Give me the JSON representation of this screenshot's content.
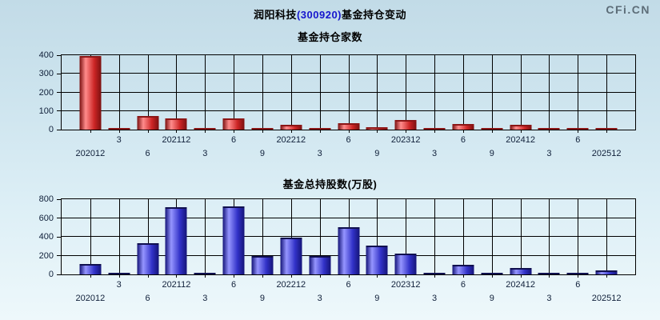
{
  "header": {
    "title_prefix": "润阳科技",
    "title_code": "(300920)",
    "title_suffix": "基金持仓变动",
    "watermark": "CFi.CN"
  },
  "colors": {
    "title_code_blue": "#1616cd",
    "watermark_gray": "#5d6d78",
    "axis_black": "#000000",
    "tick_label": "#10203a",
    "background_top": "#c2dbe7",
    "background_bottom": "#eef8fb"
  },
  "chart_data": [
    {
      "type": "bar",
      "title": "基金持仓家数",
      "categories": [
        "202012",
        "3",
        "6",
        "202112",
        "3",
        "6",
        "9",
        "202212",
        "3",
        "6",
        "9",
        "202312",
        "3",
        "6",
        "9",
        "202412",
        "3",
        "6",
        "202512"
      ],
      "values": [
        395,
        10,
        75,
        60,
        6,
        60,
        10,
        28,
        8,
        35,
        12,
        50,
        8,
        30,
        6,
        25,
        5,
        10,
        10
      ],
      "xlabel": "",
      "ylabel": "",
      "ylim": [
        0,
        400
      ],
      "yticks": [
        0,
        100,
        200,
        300,
        400
      ],
      "grid": true,
      "legend": false,
      "bar_style": {
        "edge": "#7a1010",
        "highlight": "#ff8c8c",
        "mid": "#cc2525",
        "cap": "#8c1616"
      }
    },
    {
      "type": "bar",
      "title": "基金总持股数(万股)",
      "categories": [
        "202012",
        "3",
        "6",
        "202112",
        "3",
        "6",
        "9",
        "202212",
        "3",
        "6",
        "9",
        "202312",
        "3",
        "6",
        "9",
        "202412",
        "3",
        "6",
        "202512"
      ],
      "values": [
        115,
        10,
        330,
        715,
        8,
        725,
        200,
        395,
        200,
        505,
        310,
        225,
        8,
        100,
        8,
        70,
        8,
        10,
        40
      ],
      "xlabel": "",
      "ylabel": "",
      "ylim": [
        0,
        800
      ],
      "yticks": [
        0,
        200,
        400,
        600,
        800
      ],
      "grid": true,
      "legend": false,
      "bar_style": {
        "edge": "#141478",
        "highlight": "#9595ff",
        "mid": "#3232c8",
        "cap": "#10104f"
      }
    }
  ]
}
